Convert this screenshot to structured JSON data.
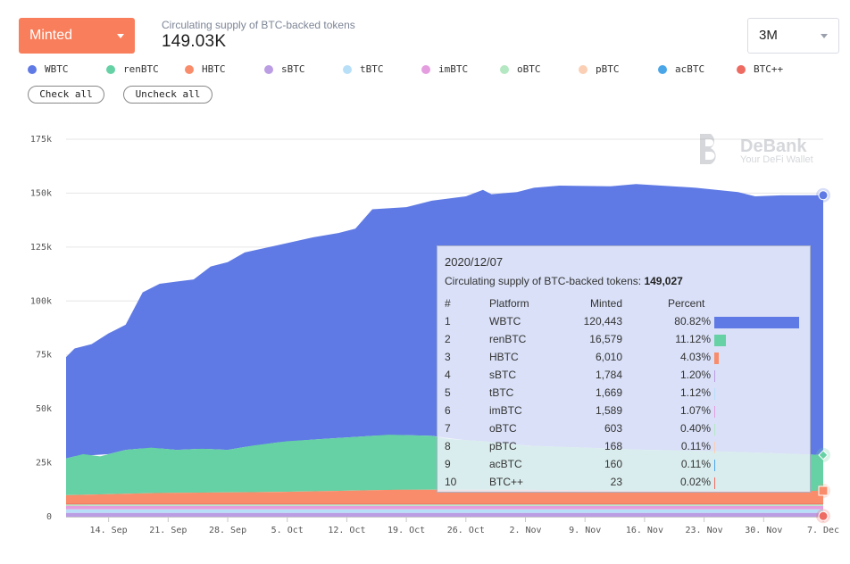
{
  "header": {
    "metric_select": "Minted",
    "subtitle": "Circulating supply of BTC-backed tokens",
    "total": "149.03K",
    "period_select": "3M"
  },
  "legend": [
    {
      "name": "WBTC",
      "color": "#5f7ae4"
    },
    {
      "name": "renBTC",
      "color": "#66d1a4"
    },
    {
      "name": "HBTC",
      "color": "#f98c6a"
    },
    {
      "name": "sBTC",
      "color": "#bb9de3"
    },
    {
      "name": "tBTC",
      "color": "#b8dff8"
    },
    {
      "name": "imBTC",
      "color": "#e49ee0"
    },
    {
      "name": "oBTC",
      "color": "#b4e8c2"
    },
    {
      "name": "pBTC",
      "color": "#fbcfb4"
    },
    {
      "name": "acBTC",
      "color": "#4ba6e8"
    },
    {
      "name": "BTC++",
      "color": "#ee6b62"
    }
  ],
  "buttons": {
    "check_all": "Check all",
    "uncheck_all": "Uncheck all"
  },
  "watermark": {
    "brand": "DeBank",
    "tagline": "Your DeFi Wallet"
  },
  "chart_data": {
    "type": "area",
    "stacked": true,
    "ylim": [
      0,
      175000
    ],
    "y_ticks": [
      "0",
      "25k",
      "50k",
      "75k",
      "100k",
      "125k",
      "150k",
      "175k"
    ],
    "x_ticks": [
      "14. Sep",
      "21. Sep",
      "28. Sep",
      "5. Oct",
      "12. Oct",
      "19. Oct",
      "26. Oct",
      "2. Nov",
      "9. Nov",
      "16. Nov",
      "23. Nov",
      "30. Nov",
      "7. Dec"
    ],
    "x_range": [
      "2020-09-09",
      "2020-12-07"
    ],
    "grid": true,
    "total_series": [
      [
        "2020-09-09",
        74000
      ],
      [
        "2020-09-10",
        78000
      ],
      [
        "2020-09-12",
        80000
      ],
      [
        "2020-09-14",
        85000
      ],
      [
        "2020-09-16",
        89000
      ],
      [
        "2020-09-18",
        104000
      ],
      [
        "2020-09-20",
        108000
      ],
      [
        "2020-09-22",
        109000
      ],
      [
        "2020-09-24",
        110000
      ],
      [
        "2020-09-26",
        116000
      ],
      [
        "2020-09-28",
        118000
      ],
      [
        "2020-09-30",
        122500
      ],
      [
        "2020-10-04",
        126000
      ],
      [
        "2020-10-08",
        129500
      ],
      [
        "2020-10-11",
        131500
      ],
      [
        "2020-10-13",
        133500
      ],
      [
        "2020-10-15",
        142500
      ],
      [
        "2020-10-19",
        143500
      ],
      [
        "2020-10-22",
        146500
      ],
      [
        "2020-10-26",
        148500
      ],
      [
        "2020-10-28",
        151500
      ],
      [
        "2020-10-29",
        149500
      ],
      [
        "2020-11-01",
        150500
      ],
      [
        "2020-11-03",
        152500
      ],
      [
        "2020-11-06",
        153500
      ],
      [
        "2020-11-12",
        153200
      ],
      [
        "2020-11-15",
        154200
      ],
      [
        "2020-11-18",
        153500
      ],
      [
        "2020-11-22",
        152500
      ],
      [
        "2020-11-27",
        150500
      ],
      [
        "2020-11-29",
        148500
      ],
      [
        "2020-12-02",
        149000
      ],
      [
        "2020-12-07",
        149027
      ]
    ],
    "renbtc_cumulative_series": [
      [
        "2020-09-09",
        27000
      ],
      [
        "2020-09-11",
        29000
      ],
      [
        "2020-09-13",
        28000
      ],
      [
        "2020-09-16",
        31000
      ],
      [
        "2020-09-19",
        32000
      ],
      [
        "2020-09-22",
        31000
      ],
      [
        "2020-09-25",
        31500
      ],
      [
        "2020-09-28",
        31000
      ],
      [
        "2020-10-01",
        33000
      ],
      [
        "2020-10-05",
        35000
      ],
      [
        "2020-10-09",
        36000
      ],
      [
        "2020-10-13",
        37000
      ],
      [
        "2020-10-17",
        38000
      ],
      [
        "2020-10-22",
        37500
      ],
      [
        "2020-10-24",
        36000
      ],
      [
        "2020-10-28",
        35000
      ],
      [
        "2020-11-02",
        33000
      ],
      [
        "2020-11-09",
        32000
      ],
      [
        "2020-11-16",
        31000
      ],
      [
        "2020-11-23",
        30500
      ],
      [
        "2020-12-01",
        29500
      ],
      [
        "2020-12-07",
        28584
      ]
    ],
    "hbtc_cumulative_series": [
      [
        "2020-09-09",
        10000
      ],
      [
        "2020-09-20",
        11000
      ],
      [
        "2020-10-04",
        11500
      ],
      [
        "2020-10-18",
        12500
      ],
      [
        "2020-11-01",
        12500
      ],
      [
        "2020-11-15",
        12000
      ],
      [
        "2020-11-29",
        12000
      ],
      [
        "2020-12-07",
        12006
      ]
    ],
    "small_cumulative_series": [
      [
        "2020-09-09",
        5000
      ],
      [
        "2020-09-20",
        5500
      ],
      [
        "2020-10-04",
        5800
      ],
      [
        "2020-10-18",
        6000
      ],
      [
        "2020-11-01",
        6000
      ],
      [
        "2020-11-15",
        6000
      ],
      [
        "2020-12-07",
        5996
      ]
    ],
    "tooltip": {
      "date": "2020/12/07",
      "summary_label": "Circulating supply of BTC-backed tokens:",
      "summary_value": "149,027",
      "columns": [
        "#",
        "Platform",
        "Minted",
        "Percent"
      ],
      "rows": [
        {
          "rank": "1",
          "platform": "WBTC",
          "minted": "120,443",
          "percent": "80.82%",
          "value": 80.82,
          "color": "#5f7ae4"
        },
        {
          "rank": "2",
          "platform": "renBTC",
          "minted": "16,579",
          "percent": "11.12%",
          "value": 11.12,
          "color": "#66d1a4"
        },
        {
          "rank": "3",
          "platform": "HBTC",
          "minted": "6,010",
          "percent": "4.03%",
          "value": 4.03,
          "color": "#f98c6a"
        },
        {
          "rank": "4",
          "platform": "sBTC",
          "minted": "1,784",
          "percent": "1.20%",
          "value": 1.2,
          "color": "#bb9de3"
        },
        {
          "rank": "5",
          "platform": "tBTC",
          "minted": "1,669",
          "percent": "1.12%",
          "value": 1.12,
          "color": "#b8dff8"
        },
        {
          "rank": "6",
          "platform": "imBTC",
          "minted": "1,589",
          "percent": "1.07%",
          "value": 1.07,
          "color": "#e49ee0"
        },
        {
          "rank": "7",
          "platform": "oBTC",
          "minted": "603",
          "percent": "0.40%",
          "value": 0.4,
          "color": "#b4e8c2"
        },
        {
          "rank": "8",
          "platform": "pBTC",
          "minted": "168",
          "percent": "0.11%",
          "value": 0.11,
          "color": "#fbcfb4"
        },
        {
          "rank": "9",
          "platform": "acBTC",
          "minted": "160",
          "percent": "0.11%",
          "value": 0.11,
          "color": "#4ba6e8"
        },
        {
          "rank": "10",
          "platform": "BTC++",
          "minted": "23",
          "percent": "0.02%",
          "value": 0.02,
          "color": "#ee6b62"
        }
      ]
    }
  }
}
